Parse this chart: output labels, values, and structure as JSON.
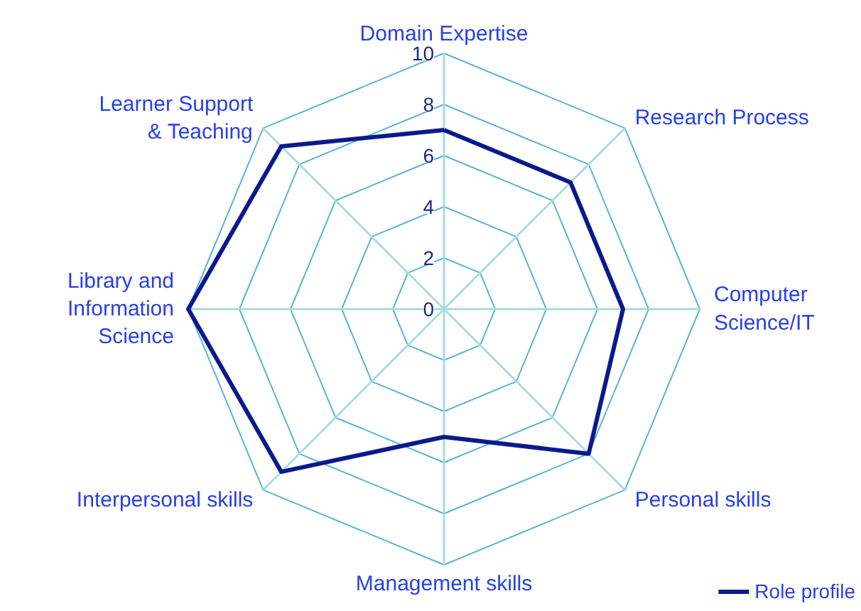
{
  "chart_data": {
    "type": "radar",
    "categories": [
      "Domain Expertise",
      "Research Process",
      "Computer\nScience/IT",
      "Personal skills",
      "Management skills",
      "Interpersonal skills",
      "Library and\nInformation\nScience",
      "Learner Support\n& Teaching"
    ],
    "series": [
      {
        "name": "Role profile",
        "color": "#0a1a8c",
        "values": [
          7,
          7,
          7,
          8,
          5,
          9,
          10,
          9
        ]
      }
    ],
    "ylim": [
      0,
      10
    ],
    "yticks": [
      0,
      2,
      4,
      6,
      8,
      10
    ],
    "grid": true,
    "legend": "bottom right"
  }
}
